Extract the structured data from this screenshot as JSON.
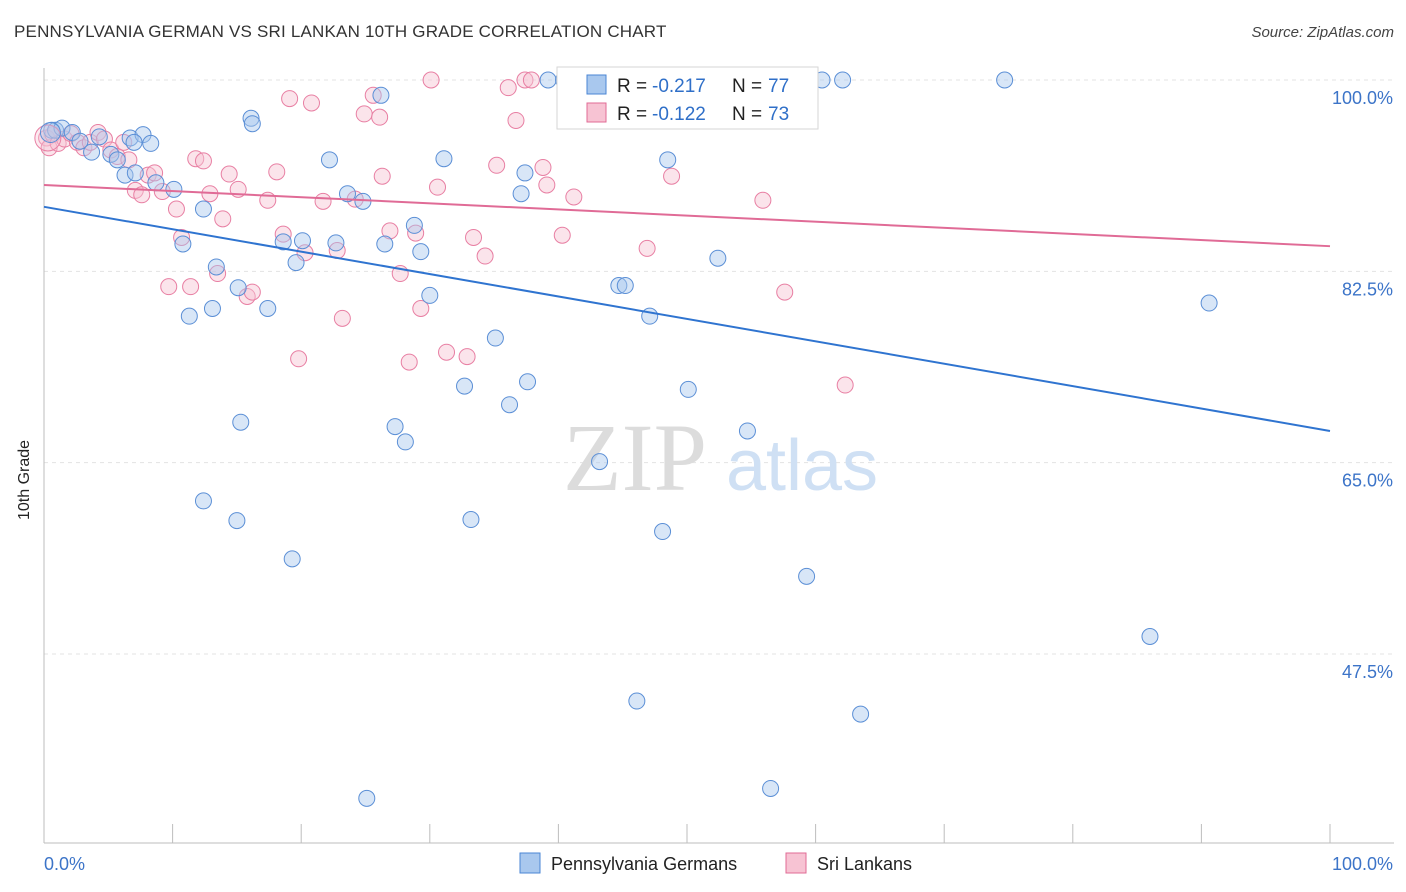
{
  "title": "PENNSYLVANIA GERMAN VS SRI LANKAN 10TH GRADE CORRELATION CHART",
  "source": "Source: ZipAtlas.com",
  "watermark": {
    "zip": "ZIP",
    "atlas": "atlas"
  },
  "legend_box": {
    "rows": [
      {
        "r_label": "R = ",
        "r_value": "-0.217",
        "n_label": "N = ",
        "n_value": "77",
        "color": "#7baee8"
      },
      {
        "r_label": "R = ",
        "r_value": "-0.122",
        "n_label": "N = ",
        "n_value": "73",
        "color": "#f2a6bd"
      }
    ]
  },
  "chart_data": {
    "type": "scatter",
    "ylabel": "10th Grade",
    "xlim": [
      0,
      100
    ],
    "ylim": [
      30,
      101.5
    ],
    "x_tick_labels": [
      "0.0%",
      "100.0%"
    ],
    "y_ticks": [
      100,
      82.5,
      65,
      47.5
    ],
    "y_tick_labels": [
      "100.0%",
      "82.5%",
      "65.0%",
      "47.5%"
    ],
    "grid": true,
    "legend_position": "bottom-center",
    "colors": {
      "blue": "#4a86d4",
      "blue_fill": "#a9c8ee",
      "pink": "#e06b96",
      "pink_fill": "#f7c3d3",
      "blue_line": "#2f74d0",
      "pink_line": "#e06b96"
    },
    "series": [
      {
        "name": "Pennsylvania Germans",
        "trend": {
          "x": [
            0,
            100
          ],
          "y": [
            88.4,
            67.9
          ]
        },
        "x": [
          0.6,
          0.9,
          1.4,
          2.2,
          2.8,
          3.7,
          4.3,
          5.2,
          5.7,
          6.7,
          6.3,
          7.1,
          7.7,
          8.3,
          8.7,
          10.1,
          10.8,
          11.3,
          12.4,
          13.4,
          13.1,
          15.3,
          12.4,
          15.1,
          16.1,
          17.4,
          19.3,
          18.6,
          19.6,
          20.1,
          22.7,
          23.6,
          24.8,
          25.1,
          26.2,
          26.5,
          27.3,
          28.1,
          29.3,
          30.0,
          31.1,
          32.7,
          33.2,
          35.1,
          36.2,
          37.1,
          37.4,
          37.6,
          39.2,
          40.4,
          40.9,
          41.2,
          42.7,
          43.2,
          44.7,
          45.2,
          46.1,
          47.1,
          48.1,
          48.5,
          50.1,
          52.4,
          53.3,
          54.7,
          56.5,
          59.3,
          60.5,
          62.1,
          63.5,
          74.7,
          86.0,
          90.6,
          22.2,
          16.2,
          7.0,
          15.0,
          28.8
        ],
        "y": [
          95.4,
          95.4,
          95.6,
          95.2,
          94.4,
          93.4,
          94.8,
          93.2,
          92.7,
          94.7,
          91.3,
          91.5,
          95.0,
          94.2,
          90.6,
          90.0,
          85.0,
          78.4,
          88.2,
          82.9,
          79.1,
          68.7,
          61.5,
          81.0,
          96.5,
          79.1,
          56.2,
          85.2,
          83.3,
          85.3,
          85.1,
          89.6,
          88.9,
          34.3,
          98.6,
          85.0,
          68.3,
          66.9,
          84.3,
          80.3,
          92.8,
          72.0,
          59.8,
          76.4,
          70.3,
          89.6,
          91.5,
          72.4,
          100.0,
          100.0,
          100.0,
          100.0,
          100.0,
          65.1,
          81.2,
          81.2,
          43.2,
          78.4,
          58.7,
          92.7,
          71.7,
          83.7,
          100.0,
          67.9,
          35.2,
          54.6,
          100.0,
          100.0,
          42.0,
          100.0,
          49.1,
          79.6,
          92.7,
          96.0,
          94.3,
          59.7,
          86.7
        ]
      },
      {
        "name": "Sri Lankans",
        "trend": {
          "x": [
            0,
            100
          ],
          "y": [
            90.4,
            84.8
          ]
        },
        "x": [
          0.2,
          0.4,
          0.7,
          1.1,
          1.6,
          2.1,
          2.6,
          3.1,
          3.6,
          4.2,
          4.7,
          5.2,
          5.7,
          6.2,
          6.6,
          7.1,
          7.6,
          8.1,
          8.6,
          9.2,
          9.7,
          10.3,
          10.7,
          11.4,
          11.8,
          12.4,
          12.9,
          13.5,
          13.9,
          14.4,
          15.1,
          15.8,
          16.2,
          17.4,
          18.1,
          18.6,
          19.1,
          19.8,
          20.3,
          20.8,
          21.7,
          22.8,
          23.2,
          24.2,
          24.9,
          25.6,
          26.1,
          26.3,
          26.9,
          27.7,
          28.4,
          28.9,
          29.3,
          30.1,
          30.6,
          31.3,
          32.9,
          33.4,
          34.3,
          35.2,
          36.1,
          36.7,
          37.4,
          37.9,
          38.8,
          39.1,
          40.3,
          41.2,
          46.9,
          48.8,
          55.9,
          57.6,
          62.3
        ],
        "y": [
          94.7,
          93.8,
          95.0,
          94.2,
          94.6,
          95.1,
          94.3,
          93.8,
          94.3,
          95.2,
          94.6,
          93.6,
          93.0,
          94.3,
          92.7,
          89.9,
          89.5,
          91.3,
          91.5,
          89.8,
          81.1,
          88.2,
          85.6,
          81.1,
          92.8,
          92.6,
          89.6,
          82.3,
          87.3,
          91.4,
          90.0,
          80.2,
          80.6,
          89.0,
          91.6,
          85.9,
          98.3,
          74.5,
          84.2,
          97.9,
          88.9,
          84.4,
          78.2,
          89.1,
          96.9,
          98.6,
          96.6,
          91.2,
          86.2,
          82.3,
          74.2,
          86.0,
          79.1,
          100.0,
          90.2,
          75.1,
          74.7,
          85.6,
          83.9,
          92.2,
          99.3,
          96.3,
          100.0,
          100.0,
          92.0,
          90.4,
          85.8,
          89.3,
          84.6,
          91.2,
          89.0,
          80.6,
          72.1
        ]
      }
    ]
  },
  "bottom_legend": [
    {
      "label": "Pennsylvania Germans"
    },
    {
      "label": "Sri Lankans"
    }
  ]
}
